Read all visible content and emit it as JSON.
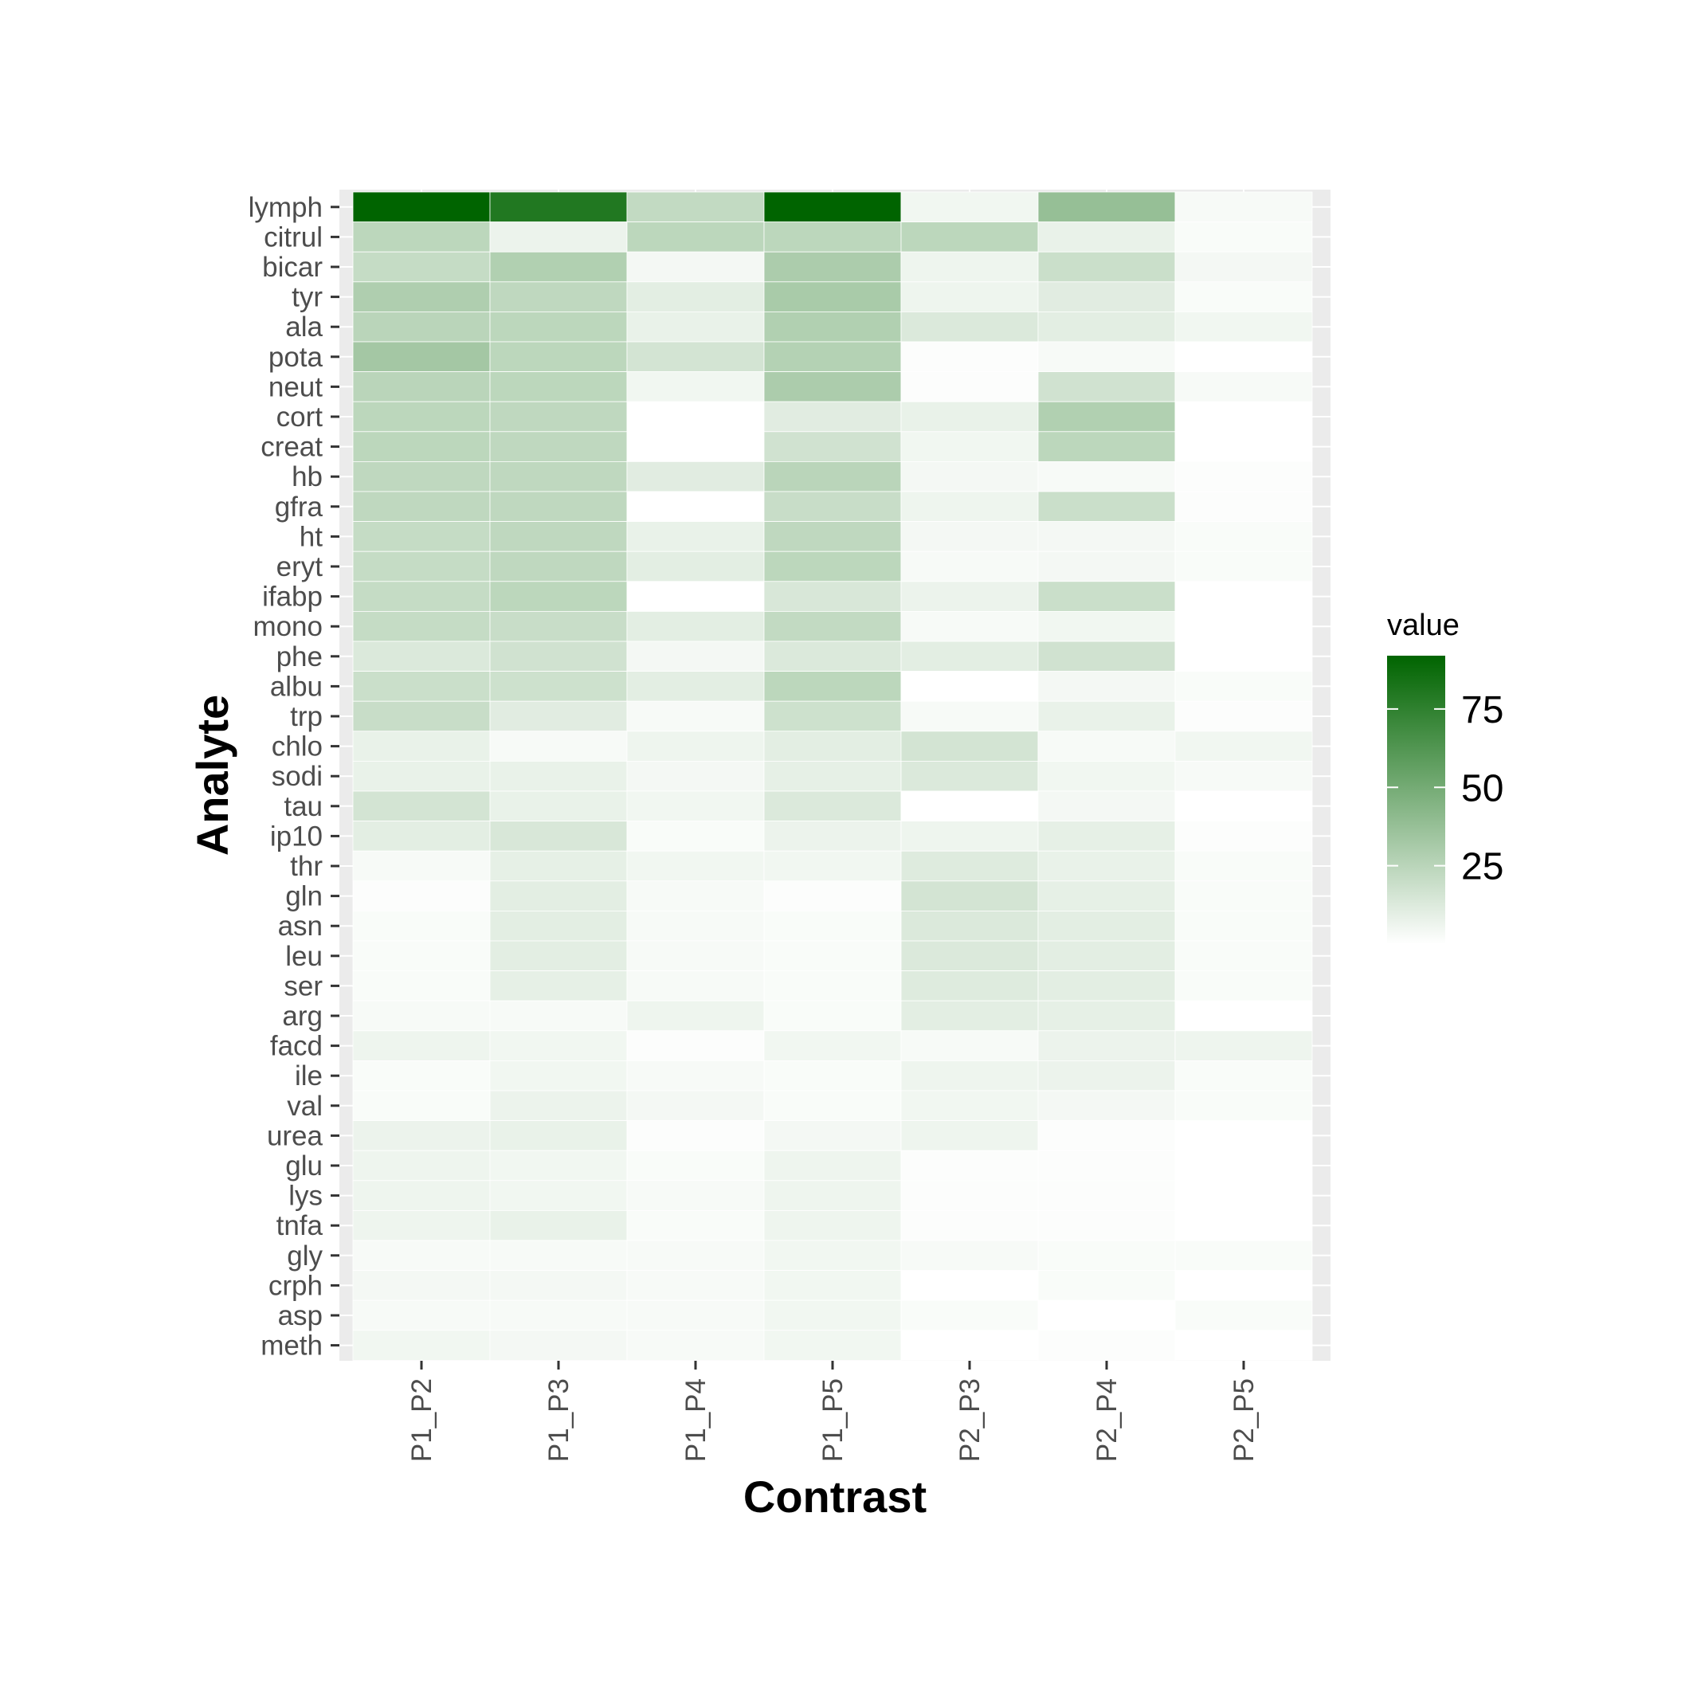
{
  "chart_data": {
    "type": "heatmap",
    "xlabel": "Contrast",
    "ylabel": "Analyte",
    "x": [
      "P1_P2",
      "P1_P3",
      "P1_P4",
      "P1_P5",
      "P2_P3",
      "P2_P4",
      "P2_P5"
    ],
    "y": [
      "lymph",
      "citrul",
      "bicar",
      "tyr",
      "ala",
      "pota",
      "neut",
      "cort",
      "creat",
      "hb",
      "gfra",
      "ht",
      "eryt",
      "ifabp",
      "mono",
      "phe",
      "albu",
      "trp",
      "chlo",
      "sodi",
      "tau",
      "ip10",
      "thr",
      "gln",
      "asn",
      "leu",
      "ser",
      "arg",
      "facd",
      "ile",
      "val",
      "urea",
      "glu",
      "lys",
      "tnfa",
      "gly",
      "crph",
      "asp",
      "meth"
    ],
    "values": [
      [
        92,
        80,
        22,
        92,
        5,
        38,
        3
      ],
      [
        24,
        7,
        24,
        24,
        24,
        8,
        2
      ],
      [
        21,
        28,
        4,
        30,
        6,
        19,
        4
      ],
      [
        29,
        23,
        10,
        31,
        6,
        11,
        2
      ],
      [
        25,
        24,
        8,
        28,
        13,
        10,
        5
      ],
      [
        33,
        24,
        16,
        27,
        1,
        3,
        0
      ],
      [
        25,
        24,
        5,
        30,
        1,
        17,
        3
      ],
      [
        24,
        23,
        0,
        11,
        8,
        28,
        0
      ],
      [
        24,
        23,
        0,
        17,
        5,
        24,
        0
      ],
      [
        23,
        23,
        11,
        25,
        4,
        3,
        1
      ],
      [
        23,
        23,
        0,
        20,
        6,
        19,
        1
      ],
      [
        21,
        23,
        8,
        23,
        4,
        4,
        2
      ],
      [
        21,
        23,
        10,
        24,
        3,
        4,
        2
      ],
      [
        21,
        24,
        0,
        14,
        7,
        19,
        0
      ],
      [
        21,
        20,
        10,
        22,
        3,
        5,
        0
      ],
      [
        13,
        17,
        4,
        13,
        10,
        17,
        0
      ],
      [
        19,
        18,
        10,
        24,
        0,
        4,
        2
      ],
      [
        20,
        11,
        3,
        18,
        3,
        8,
        1
      ],
      [
        8,
        3,
        6,
        10,
        16,
        3,
        5
      ],
      [
        8,
        8,
        4,
        9,
        13,
        5,
        3
      ],
      [
        16,
        8,
        5,
        13,
        0,
        4,
        0
      ],
      [
        10,
        14,
        2,
        7,
        6,
        9,
        1
      ],
      [
        3,
        9,
        5,
        5,
        12,
        8,
        2
      ],
      [
        1,
        10,
        3,
        1,
        16,
        9,
        2
      ],
      [
        2,
        10,
        3,
        2,
        13,
        10,
        2
      ],
      [
        2,
        10,
        3,
        2,
        13,
        10,
        2
      ],
      [
        2,
        9,
        3,
        2,
        12,
        10,
        2
      ],
      [
        3,
        3,
        6,
        2,
        10,
        9,
        0
      ],
      [
        6,
        5,
        1,
        5,
        3,
        7,
        6
      ],
      [
        2,
        5,
        3,
        2,
        6,
        7,
        2
      ],
      [
        2,
        7,
        4,
        2,
        5,
        4,
        2
      ],
      [
        7,
        8,
        1,
        4,
        6,
        1,
        0
      ],
      [
        6,
        5,
        2,
        6,
        1,
        1,
        0
      ],
      [
        6,
        5,
        3,
        6,
        1,
        1,
        0
      ],
      [
        6,
        8,
        2,
        6,
        1,
        1,
        0
      ],
      [
        3,
        3,
        3,
        5,
        3,
        2,
        2
      ],
      [
        4,
        4,
        3,
        5,
        0,
        2,
        0
      ],
      [
        3,
        3,
        3,
        5,
        2,
        0,
        2
      ],
      [
        5,
        4,
        3,
        5,
        0,
        1,
        0
      ]
    ],
    "colorscale": {
      "title": "value",
      "low_color": "#ffffff",
      "high_color": "#006400",
      "range": [
        0,
        92
      ],
      "ticks": [
        25,
        50,
        75
      ]
    },
    "panel_background": "#ebebeb",
    "grid": true
  }
}
